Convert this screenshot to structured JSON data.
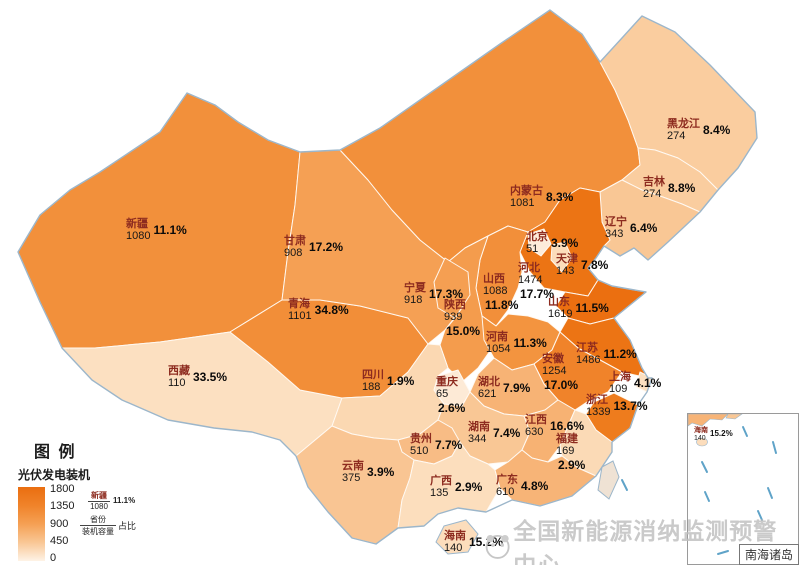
{
  "provinces": [
    {
      "id": "XJ",
      "name": "新疆",
      "value": "1080",
      "pct": "11.1%",
      "color": "#F2903B"
    },
    {
      "id": "XZ",
      "name": "西藏",
      "value": "110",
      "pct": "33.5%",
      "color": "#FCE0C1"
    },
    {
      "id": "QH",
      "name": "青海",
      "value": "1101",
      "pct": "34.8%",
      "color": "#F28E38"
    },
    {
      "id": "GS",
      "name": "甘肃",
      "value": "908",
      "pct": "17.2%",
      "color": "#F5A054"
    },
    {
      "id": "NMG",
      "name": "内蒙古",
      "value": "1081",
      "pct": "8.3%",
      "color": "#F2903B"
    },
    {
      "id": "HLJ",
      "name": "黑龙江",
      "value": "274",
      "pct": "8.4%",
      "color": "#FACD9F"
    },
    {
      "id": "JL",
      "name": "吉林",
      "value": "274",
      "pct": "8.8%",
      "color": "#FACD9F"
    },
    {
      "id": "LN",
      "name": "辽宁",
      "value": "343",
      "pct": "6.4%",
      "color": "#F9C795"
    },
    {
      "id": "HEB",
      "name": "河北",
      "value": "1474",
      "pct": "17.7%",
      "color": "#EC7414"
    },
    {
      "id": "SX",
      "name": "山西",
      "value": "1088",
      "pct": "11.8%",
      "color": "#F28F3A"
    },
    {
      "id": "SAX",
      "name": "陕西",
      "value": "939",
      "pct": "15.0%",
      "color": "#F49C4D"
    },
    {
      "id": "SD",
      "name": "山东",
      "value": "1619",
      "pct": "11.5%",
      "color": "#EB6F10"
    },
    {
      "id": "HEN",
      "name": "河南",
      "value": "1054",
      "pct": "11.3%",
      "color": "#F3943F"
    },
    {
      "id": "JS",
      "name": "江苏",
      "value": "1486",
      "pct": "11.2%",
      "color": "#EC7414"
    },
    {
      "id": "AH",
      "name": "安徽",
      "value": "1254",
      "pct": "17.0%",
      "color": "#F0832A"
    },
    {
      "id": "ZJ",
      "name": "浙江",
      "value": "1339",
      "pct": "13.7%",
      "color": "#EE7C1D"
    },
    {
      "id": "HUB",
      "name": "湖北",
      "value": "621",
      "pct": "7.9%",
      "color": "#F7B375"
    },
    {
      "id": "SC",
      "name": "四川",
      "value": "188",
      "pct": "1.9%",
      "color": "#FBD8B2"
    },
    {
      "id": "CQ",
      "name": "重庆",
      "value": "65",
      "pct": "2.6%",
      "color": "#FDEAD6"
    },
    {
      "id": "HUN",
      "name": "湖南",
      "value": "344",
      "pct": "7.4%",
      "color": "#F9C795"
    },
    {
      "id": "JX",
      "name": "江西",
      "value": "630",
      "pct": "16.6%",
      "color": "#F7B273"
    },
    {
      "id": "FJ",
      "name": "福建",
      "value": "169",
      "pct": "2.9%",
      "color": "#FBDAB6"
    },
    {
      "id": "GZ",
      "name": "贵州",
      "value": "510",
      "pct": "7.7%",
      "color": "#F8BC85"
    },
    {
      "id": "YN",
      "name": "云南",
      "value": "375",
      "pct": "3.9%",
      "color": "#F9C593"
    },
    {
      "id": "GX",
      "name": "广西",
      "value": "135",
      "pct": "2.9%",
      "color": "#FCDEBD"
    },
    {
      "id": "GD",
      "name": "广东",
      "value": "610",
      "pct": "4.8%",
      "color": "#F7B477"
    },
    {
      "id": "HAIN",
      "name": "海南",
      "value": "140",
      "pct": "15.2%",
      "color": "#FCDDBC"
    },
    {
      "id": "NX",
      "name": "宁夏",
      "value": "918",
      "pct": "17.3%",
      "color": "#F59F52"
    },
    {
      "id": "BJ",
      "name": "北京",
      "value": "51",
      "pct": "3.9%",
      "color": "#FDECDA"
    },
    {
      "id": "TJ",
      "name": "天津",
      "value": "143",
      "pct": "7.8%",
      "color": "#FCDDBB"
    },
    {
      "id": "SH",
      "name": "上海",
      "value": "109",
      "pct": "4.1%",
      "color": "#FCE0C1"
    }
  ],
  "legend": {
    "title": "图 例",
    "subtitle": "光伏发电装机",
    "ticks": [
      "1800",
      "1350",
      "900",
      "450",
      "0"
    ],
    "example": {
      "name": "新疆",
      "value": "1080",
      "pct": "11.1%"
    },
    "key": {
      "numerator": "省份",
      "denominator": "装机容量",
      "right": "占比"
    }
  },
  "inset": {
    "title": "南海诸岛",
    "hainan": {
      "name": "海南",
      "value": "140",
      "pct": "15.2%"
    }
  },
  "watermark": {
    "text": "全国新能源消纳监测预警中心"
  },
  "chart_data": {
    "type": "choropleth",
    "title": "光伏发电装机",
    "legend_range": [
      0,
      1800
    ],
    "categories": [
      "新疆",
      "西藏",
      "青海",
      "甘肃",
      "内蒙古",
      "黑龙江",
      "吉林",
      "辽宁",
      "河北",
      "山西",
      "陕西",
      "山东",
      "河南",
      "江苏",
      "安徽",
      "浙江",
      "湖北",
      "四川",
      "重庆",
      "湖南",
      "江西",
      "福建",
      "贵州",
      "云南",
      "广西",
      "广东",
      "海南",
      "宁夏",
      "北京",
      "天津",
      "上海"
    ],
    "series": [
      {
        "name": "装机容量",
        "values": [
          1080,
          110,
          1101,
          908,
          1081,
          274,
          274,
          343,
          1474,
          1088,
          939,
          1619,
          1054,
          1486,
          1254,
          1339,
          621,
          188,
          65,
          344,
          630,
          169,
          510,
          375,
          135,
          610,
          140,
          918,
          51,
          143,
          109
        ]
      },
      {
        "name": "占比(%)",
        "values": [
          11.1,
          33.5,
          34.8,
          17.2,
          8.3,
          8.4,
          8.8,
          6.4,
          17.7,
          11.8,
          15.0,
          11.5,
          11.3,
          11.2,
          17.0,
          13.7,
          7.9,
          1.9,
          2.6,
          7.4,
          16.6,
          2.9,
          7.7,
          3.9,
          2.9,
          4.8,
          15.2,
          17.3,
          3.9,
          7.8,
          4.1
        ]
      }
    ]
  }
}
